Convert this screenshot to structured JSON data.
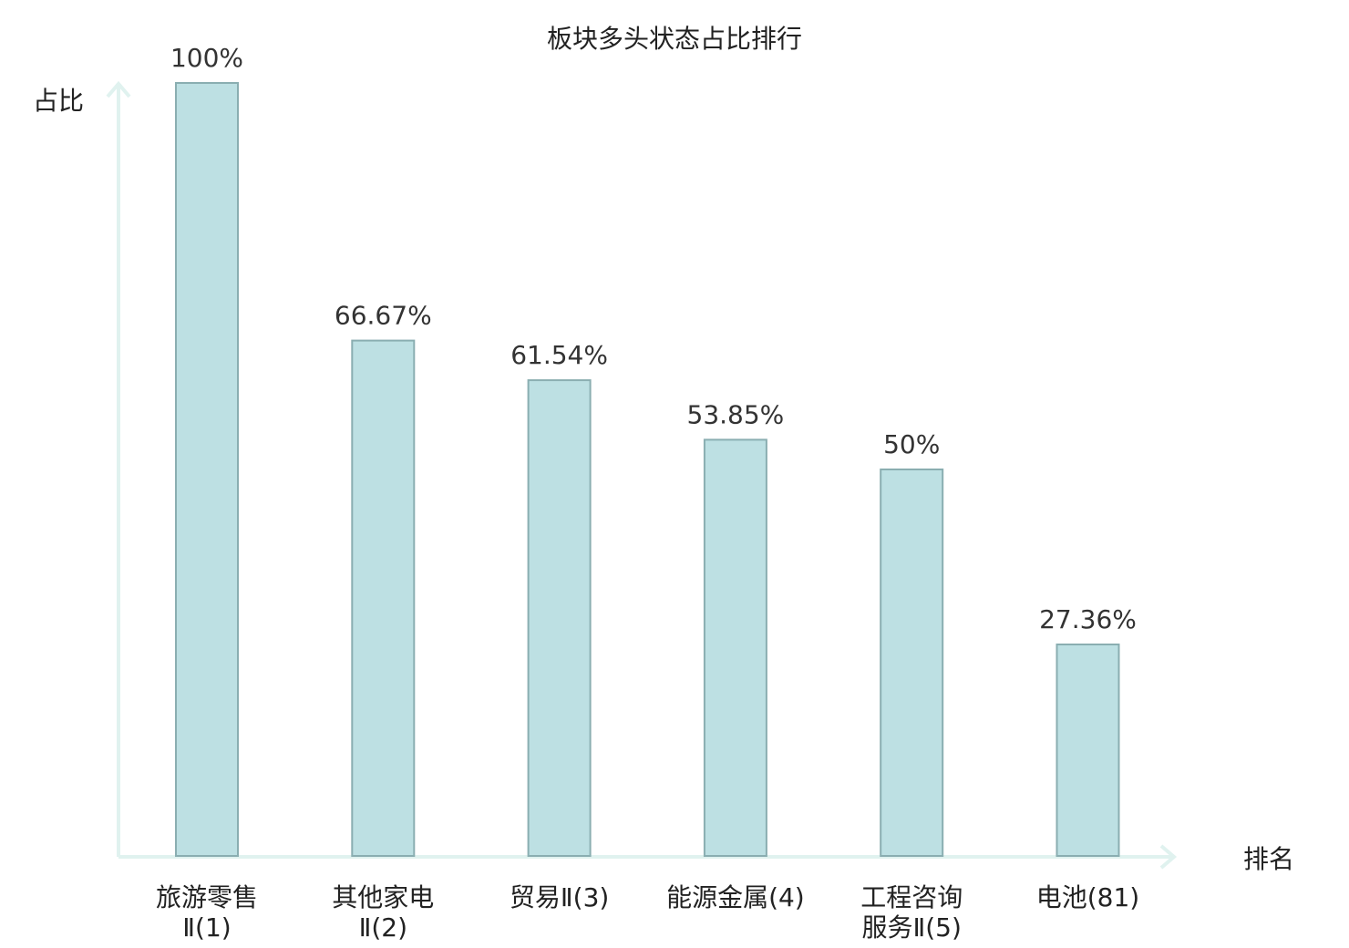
{
  "chart_data": {
    "type": "bar",
    "title": "板块多头状态占比排行",
    "ylabel": "占比",
    "xlabel": "排名",
    "ylim": [
      0,
      100
    ],
    "categories": [
      {
        "lines": [
          "旅游零售",
          "Ⅱ(1)"
        ],
        "value": 100,
        "label": "100%",
        "highlight": false
      },
      {
        "lines": [
          "其他家电",
          "Ⅱ(2)"
        ],
        "value": 66.67,
        "label": "66.67%",
        "highlight": false
      },
      {
        "lines": [
          "贸易Ⅱ(3)"
        ],
        "value": 61.54,
        "label": "61.54%",
        "highlight": false
      },
      {
        "lines": [
          "能源金属(4)"
        ],
        "value": 53.85,
        "label": "53.85%",
        "highlight": false
      },
      {
        "lines": [
          "工程咨询",
          "服务Ⅱ(5)"
        ],
        "value": 50,
        "label": "50%",
        "highlight": false
      },
      {
        "lines": [
          "电池(81)"
        ],
        "value": 27.36,
        "label": "27.36%",
        "highlight": true
      }
    ],
    "colors": {
      "bar_fill": "#bde0e3",
      "bar_stroke": "#8aaeb1",
      "axis": "#e0f2ef",
      "highlight_text": "#e02020",
      "text": "#222222"
    },
    "grid": false
  }
}
